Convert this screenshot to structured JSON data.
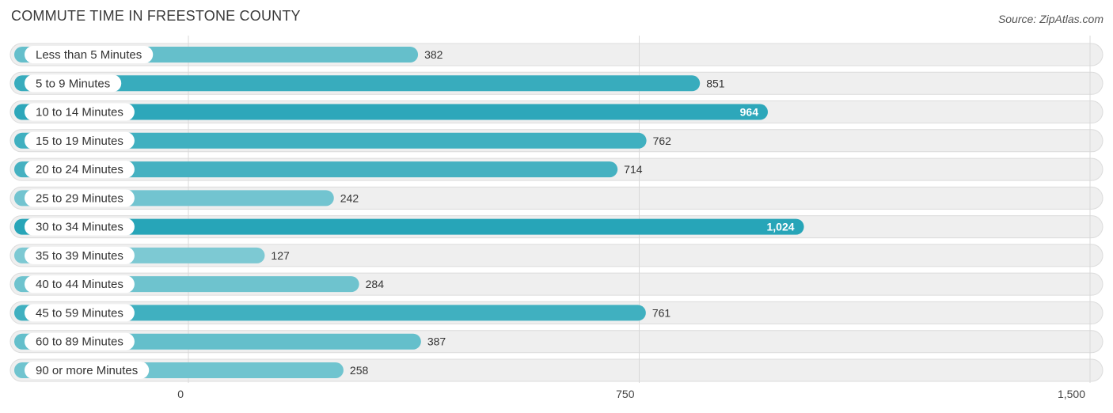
{
  "header": {
    "title": "COMMUTE TIME IN FREESTONE COUNTY",
    "source": "Source: ZipAtlas.com"
  },
  "colors": {
    "bar_dark": "#27a5b8",
    "bar_light": "#7dc9d3",
    "value_inside": "#ffffff",
    "value_outside": "#333333"
  },
  "chart_data": {
    "type": "bar",
    "orientation": "horizontal",
    "title": "COMMUTE TIME IN FREESTONE COUNTY",
    "categories": [
      "Less than 5 Minutes",
      "5 to 9 Minutes",
      "10 to 14 Minutes",
      "15 to 19 Minutes",
      "20 to 24 Minutes",
      "25 to 29 Minutes",
      "30 to 34 Minutes",
      "35 to 39 Minutes",
      "40 to 44 Minutes",
      "45 to 59 Minutes",
      "60 to 89 Minutes",
      "90 or more Minutes"
    ],
    "values": [
      382,
      851,
      964,
      762,
      714,
      242,
      1024,
      127,
      284,
      761,
      387,
      258
    ],
    "value_labels": [
      "382",
      "851",
      "964",
      "762",
      "714",
      "242",
      "1,024",
      "127",
      "284",
      "761",
      "387",
      "258"
    ],
    "xlim": [
      0,
      1500
    ],
    "ticks": [
      0,
      750,
      1500
    ],
    "tick_labels": [
      "0",
      "750",
      "1,500"
    ],
    "grid": true,
    "legend": "none"
  }
}
